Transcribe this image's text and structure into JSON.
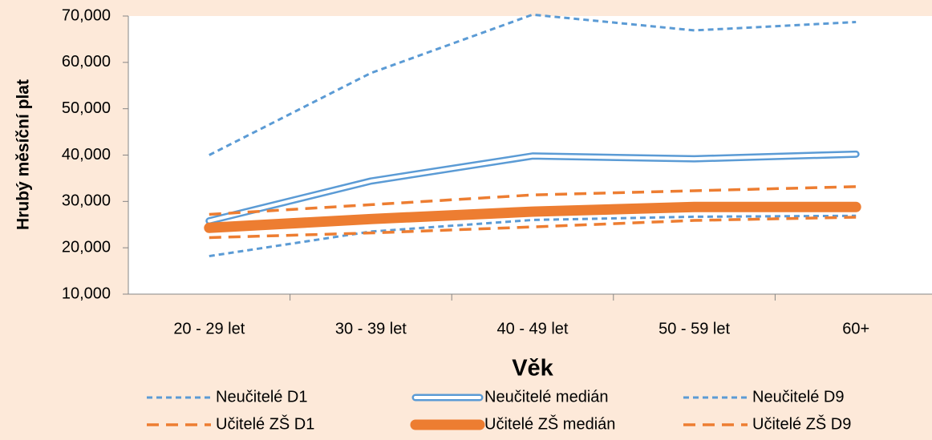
{
  "chart_data": {
    "type": "line",
    "y_label": "Hrubý měsíční plat",
    "x_label": "Věk",
    "categories": [
      "20 - 29 let",
      "30 - 39 let",
      "40 - 49 let",
      "50 - 59 let",
      "60+"
    ],
    "ylim": [
      10000,
      70000
    ],
    "yticks": [
      {
        "value": 10000,
        "label": "10,000"
      },
      {
        "value": 20000,
        "label": "20,000"
      },
      {
        "value": 30000,
        "label": "30,000"
      },
      {
        "value": 40000,
        "label": "40,000"
      },
      {
        "value": 50000,
        "label": "50,000"
      },
      {
        "value": 60000,
        "label": "60,000"
      },
      {
        "value": 70000,
        "label": "70,000"
      }
    ],
    "series": [
      {
        "name": "Neučitelé D1",
        "color": "#5b9bd5",
        "line_style": "dotted",
        "values": [
          18200,
          23500,
          26000,
          26700,
          26900
        ]
      },
      {
        "name": "Neučitelé medián",
        "color": "#5b9bd5",
        "line_style": "double",
        "values": [
          25800,
          34400,
          39800,
          39200,
          40200
        ]
      },
      {
        "name": "Neučitelé D9",
        "color": "#5b9bd5",
        "line_style": "dotted",
        "values": [
          40000,
          57700,
          70300,
          66900,
          68700
        ]
      },
      {
        "name": "Učitelé ZŠ D1",
        "color": "#ed7d31",
        "line_style": "dashed",
        "values": [
          22200,
          23200,
          24500,
          25900,
          26600
        ]
      },
      {
        "name": "Učitelé ZŠ medián",
        "color": "#ed7d31",
        "line_style": "thick",
        "values": [
          24300,
          26200,
          27800,
          28800,
          28800
        ]
      },
      {
        "name": "Učitelé ZŠ D9",
        "color": "#ed7d31",
        "line_style": "dashed",
        "values": [
          27200,
          29300,
          31400,
          32300,
          33200
        ]
      }
    ]
  }
}
